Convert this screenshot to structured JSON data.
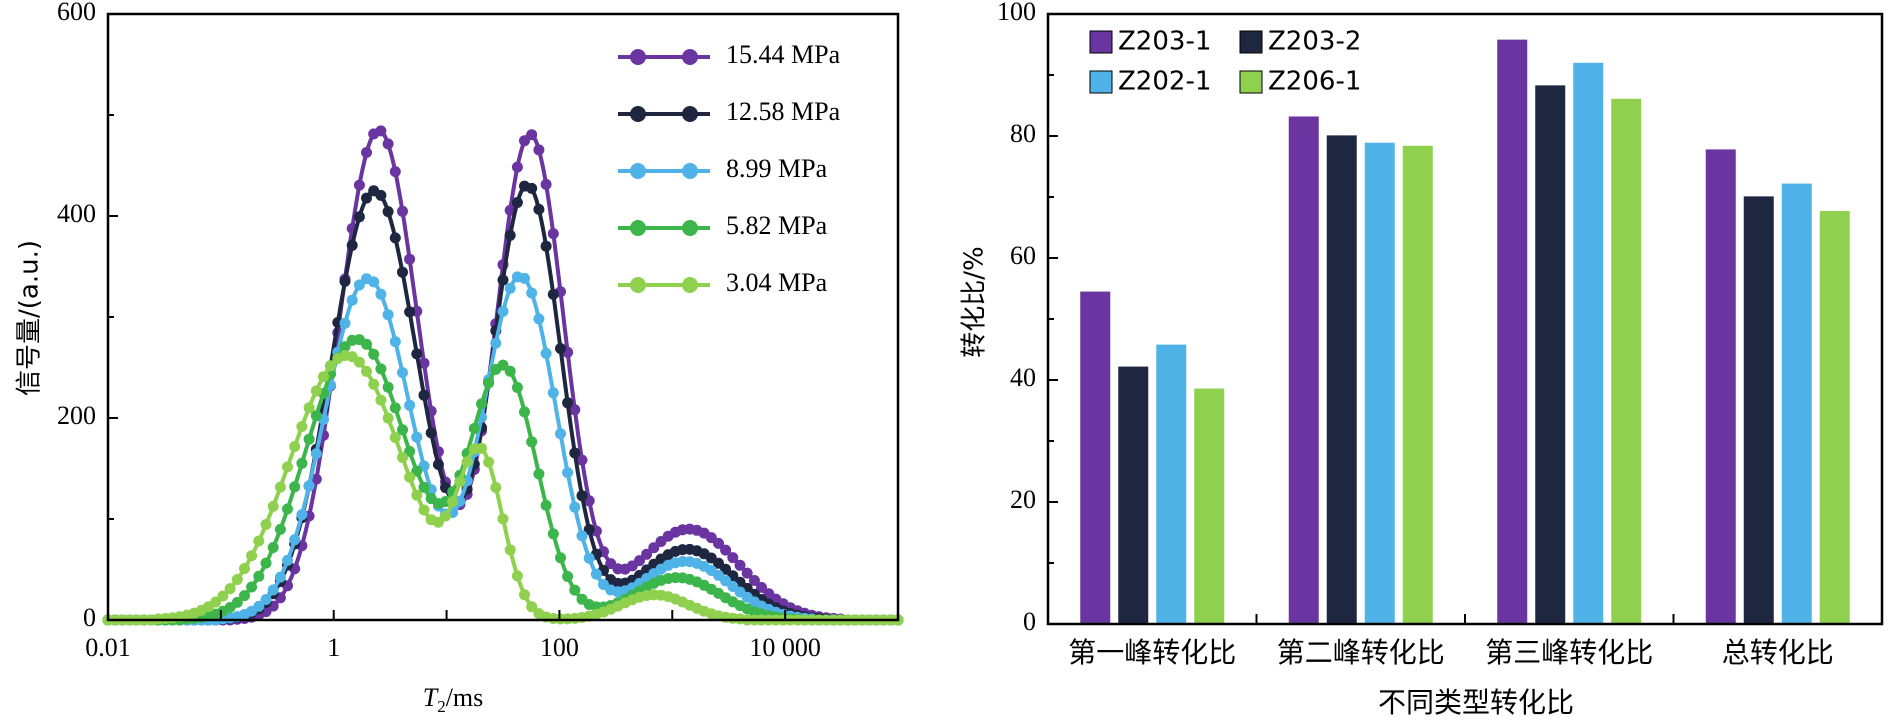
{
  "chart_data": [
    {
      "type": "line",
      "title": "",
      "xlabel_var": "T",
      "xlabel_sub": "2",
      "xlabel_unit": "/ms",
      "ylabel": "信号量/(a.u.)",
      "x_scale": "log",
      "xlim": [
        0.01,
        100000
      ],
      "ylim": [
        0,
        600
      ],
      "x_ticks": [
        0.01,
        1,
        100,
        10000
      ],
      "x_tick_labels": [
        "0.01",
        "1",
        "100",
        "10 000"
      ],
      "y_ticks": [
        0,
        200,
        400,
        600
      ],
      "y_tick_labels": [
        "0",
        "200",
        "400",
        "600"
      ],
      "legend_position": "top-right",
      "grid": false,
      "series": [
        {
          "name": "15.44 MPa",
          "color": "#6a35a0",
          "peaks": [
            {
              "center": 2.5,
              "amp": 485,
              "width": 0.35
            },
            {
              "center": 55,
              "amp": 480,
              "width": 0.3
            },
            {
              "center": 1400,
              "amp": 90,
              "width": 0.45
            }
          ]
        },
        {
          "name": "12.58 MPa",
          "color": "#1f2640",
          "peaks": [
            {
              "center": 2.3,
              "amp": 425,
              "width": 0.38
            },
            {
              "center": 52,
              "amp": 430,
              "width": 0.3
            },
            {
              "center": 1350,
              "amp": 70,
              "width": 0.42
            }
          ]
        },
        {
          "name": "8.99 MPa",
          "color": "#4fb3e8",
          "peaks": [
            {
              "center": 2.0,
              "amp": 338,
              "width": 0.38
            },
            {
              "center": 45,
              "amp": 340,
              "width": 0.32
            },
            {
              "center": 1300,
              "amp": 58,
              "width": 0.4
            }
          ]
        },
        {
          "name": "5.82 MPa",
          "color": "#3cb54a",
          "peaks": [
            {
              "center": 1.6,
              "amp": 278,
              "width": 0.45
            },
            {
              "center": 32,
              "amp": 248,
              "width": 0.3
            },
            {
              "center": 1100,
              "amp": 42,
              "width": 0.38
            }
          ]
        },
        {
          "name": "3.04 MPa",
          "color": "#8fd14f",
          "peaks": [
            {
              "center": 1.3,
              "amp": 262,
              "width": 0.5
            },
            {
              "center": 20,
              "amp": 155,
              "width": 0.2
            },
            {
              "center": 700,
              "amp": 25,
              "width": 0.3
            }
          ]
        }
      ]
    },
    {
      "type": "bar",
      "title": "",
      "xlabel": "不同类型转化比",
      "ylabel": "转化比/%",
      "ylim": [
        0,
        100
      ],
      "y_ticks": [
        0,
        20,
        40,
        60,
        80,
        100
      ],
      "y_tick_labels": [
        "0",
        "20",
        "40",
        "60",
        "80",
        "100"
      ],
      "categories": [
        "第一峰转化比",
        "第二峰转化比",
        "第三峰转化比",
        "总转化比"
      ],
      "legend_position": "top-left",
      "grid": false,
      "series": [
        {
          "name": "Z203-1",
          "color": "#6a35a0",
          "values": [
            54.5,
            83.2,
            95.8,
            77.8
          ]
        },
        {
          "name": "Z203-2",
          "color": "#1f2640",
          "values": [
            42.2,
            80.1,
            88.3,
            70.1
          ]
        },
        {
          "name": "Z202-1",
          "color": "#4fb3e8",
          "values": [
            45.8,
            78.9,
            92.0,
            72.2
          ]
        },
        {
          "name": "Z206-1",
          "color": "#8fd14f",
          "values": [
            38.6,
            78.4,
            86.1,
            67.7
          ]
        }
      ]
    }
  ]
}
